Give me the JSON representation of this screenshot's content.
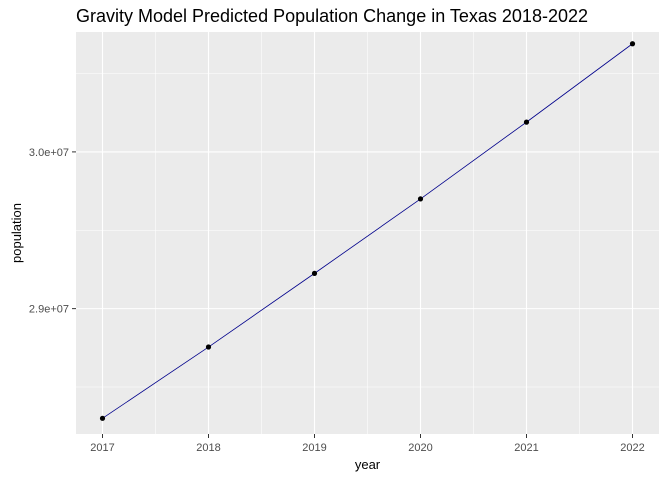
{
  "chart_data": {
    "type": "line",
    "title": "Gravity Model Predicted Population Change in Texas 2018-2022",
    "xlabel": "year",
    "ylabel": "population",
    "x": [
      2017,
      2018,
      2019,
      2020,
      2021,
      2022
    ],
    "series": [
      {
        "values": [
          28300000,
          28755000,
          29225000,
          29700000,
          30190000,
          30690000
        ],
        "line_color": "#00008b",
        "point_color": "#000000"
      }
    ],
    "xlim": [
      2016.75,
      2022.25
    ],
    "ylim": [
      28200000,
      30765000
    ],
    "x_ticks": [
      {
        "value": 2017,
        "label": "2017"
      },
      {
        "value": 2018,
        "label": "2018"
      },
      {
        "value": 2019,
        "label": "2019"
      },
      {
        "value": 2020,
        "label": "2020"
      },
      {
        "value": 2021,
        "label": "2021"
      },
      {
        "value": 2022,
        "label": "2022"
      }
    ],
    "y_ticks": [
      {
        "value": 29000000,
        "label": "2.9e+07"
      },
      {
        "value": 30000000,
        "label": "3.0e+07"
      }
    ],
    "y_minor_ticks": [
      28500000,
      29500000,
      30500000
    ],
    "x_minor_ticks": [
      2017.5,
      2018.5,
      2019.5,
      2020.5,
      2021.5
    ],
    "grid": true,
    "panel_background": "#ebebeb",
    "grid_color": "#ffffff"
  }
}
